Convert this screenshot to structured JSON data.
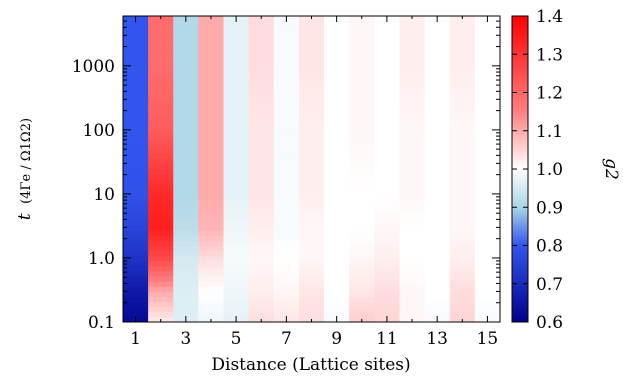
{
  "chart_data": {
    "type": "heatmap",
    "xlabel": "Distance (Lattice sites)",
    "ylabel_symbol": "t",
    "ylabel_unit": "(4Γe / Ω1Ω2)",
    "colorbar_label": "g2",
    "x_categories": [
      1,
      2,
      3,
      4,
      5,
      6,
      7,
      8,
      9,
      10,
      11,
      12,
      13,
      14,
      15
    ],
    "x_tick_labels": [
      "1",
      "3",
      "5",
      "7",
      "9",
      "11",
      "13",
      "15"
    ],
    "y_scale": "log",
    "y_range": [
      0.1,
      6000
    ],
    "y_tick_labels": [
      "0.1",
      "1.0",
      "10",
      "100",
      "1000"
    ],
    "y_tick_values": [
      0.1,
      1,
      10,
      100,
      1000
    ],
    "color_range": [
      0.6,
      1.4
    ],
    "colorbar_ticks": [
      "0.6",
      "0.7",
      "0.8",
      "0.9",
      "1.0",
      "1.1",
      "1.2",
      "1.3",
      "1.4"
    ],
    "colormap": [
      "#00008b",
      "#3355ee",
      "#aad4e6",
      "#ffffff",
      "#ff8080",
      "#ff0000"
    ],
    "g2_by_distance_vs_time": [
      {
        "distance": 1,
        "t": [
          0.1,
          0.3,
          1,
          3,
          10,
          100,
          1000,
          6000
        ],
        "g2": [
          0.62,
          0.66,
          0.72,
          0.76,
          0.79,
          0.8,
          0.8,
          0.8
        ]
      },
      {
        "distance": 2,
        "t": [
          0.1,
          0.3,
          1,
          3,
          10,
          100,
          1000,
          6000
        ],
        "g2": [
          1.02,
          1.1,
          1.26,
          1.34,
          1.32,
          1.22,
          1.19,
          1.19
        ]
      },
      {
        "distance": 3,
        "t": [
          0.1,
          0.3,
          1,
          3,
          10,
          100,
          1000,
          6000
        ],
        "g2": [
          0.96,
          0.96,
          0.95,
          0.92,
          0.91,
          0.91,
          0.91,
          0.91
        ]
      },
      {
        "distance": 4,
        "t": [
          0.1,
          0.3,
          1,
          3,
          10,
          100,
          1000,
          6000
        ],
        "g2": [
          0.98,
          1.0,
          1.04,
          1.09,
          1.1,
          1.1,
          1.1,
          1.1
        ]
      },
      {
        "distance": 5,
        "t": [
          0.1,
          0.3,
          1,
          3,
          10,
          100,
          1000,
          6000
        ],
        "g2": [
          0.97,
          0.98,
          0.99,
          0.98,
          0.97,
          0.97,
          0.97,
          0.97
        ]
      },
      {
        "distance": 6,
        "t": [
          0.1,
          0.3,
          1,
          3,
          10,
          100,
          1000,
          6000
        ],
        "g2": [
          1.04,
          1.02,
          1.01,
          1.02,
          1.03,
          1.03,
          1.04,
          1.04
        ]
      },
      {
        "distance": 7,
        "t": [
          0.1,
          0.3,
          1,
          3,
          10,
          100,
          1000,
          6000
        ],
        "g2": [
          1.03,
          1.01,
          1.0,
          0.99,
          0.99,
          0.99,
          0.99,
          0.99
        ]
      },
      {
        "distance": 8,
        "t": [
          0.1,
          0.3,
          1,
          3,
          10,
          100,
          1000,
          6000
        ],
        "g2": [
          1.04,
          1.03,
          1.01,
          1.01,
          1.02,
          1.02,
          1.03,
          1.03
        ]
      },
      {
        "distance": 9,
        "t": [
          0.1,
          0.3,
          1,
          3,
          10,
          100,
          1000,
          6000
        ],
        "g2": [
          0.99,
          1.0,
          1.0,
          1.0,
          1.0,
          1.0,
          1.0,
          1.0
        ]
      },
      {
        "distance": 10,
        "t": [
          0.1,
          0.3,
          1,
          3,
          10,
          100,
          1000,
          6000
        ],
        "g2": [
          1.06,
          1.03,
          1.01,
          1.0,
          1.0,
          1.01,
          1.01,
          1.01
        ]
      },
      {
        "distance": 11,
        "t": [
          0.1,
          0.3,
          1,
          3,
          10,
          100,
          1000,
          6000
        ],
        "g2": [
          1.05,
          1.04,
          1.02,
          1.01,
          1.0,
          1.0,
          1.0,
          1.0
        ]
      },
      {
        "distance": 12,
        "t": [
          0.1,
          0.3,
          1,
          3,
          10,
          100,
          1000,
          6000
        ],
        "g2": [
          1.01,
          1.01,
          1.0,
          1.0,
          1.01,
          1.01,
          1.02,
          1.02
        ]
      },
      {
        "distance": 13,
        "t": [
          0.1,
          0.3,
          1,
          3,
          10,
          100,
          1000,
          6000
        ],
        "g2": [
          0.99,
          1.0,
          1.0,
          1.0,
          1.0,
          1.0,
          1.0,
          1.0
        ]
      },
      {
        "distance": 14,
        "t": [
          0.1,
          0.3,
          1,
          3,
          10,
          100,
          1000,
          6000
        ],
        "g2": [
          1.05,
          1.04,
          1.02,
          1.01,
          1.01,
          1.01,
          1.02,
          1.02
        ]
      },
      {
        "distance": 15,
        "t": [
          0.1,
          0.3,
          1,
          3,
          10,
          100,
          1000,
          6000
        ],
        "g2": [
          0.99,
          1.0,
          1.0,
          1.0,
          1.0,
          1.0,
          1.0,
          1.0
        ]
      }
    ]
  }
}
